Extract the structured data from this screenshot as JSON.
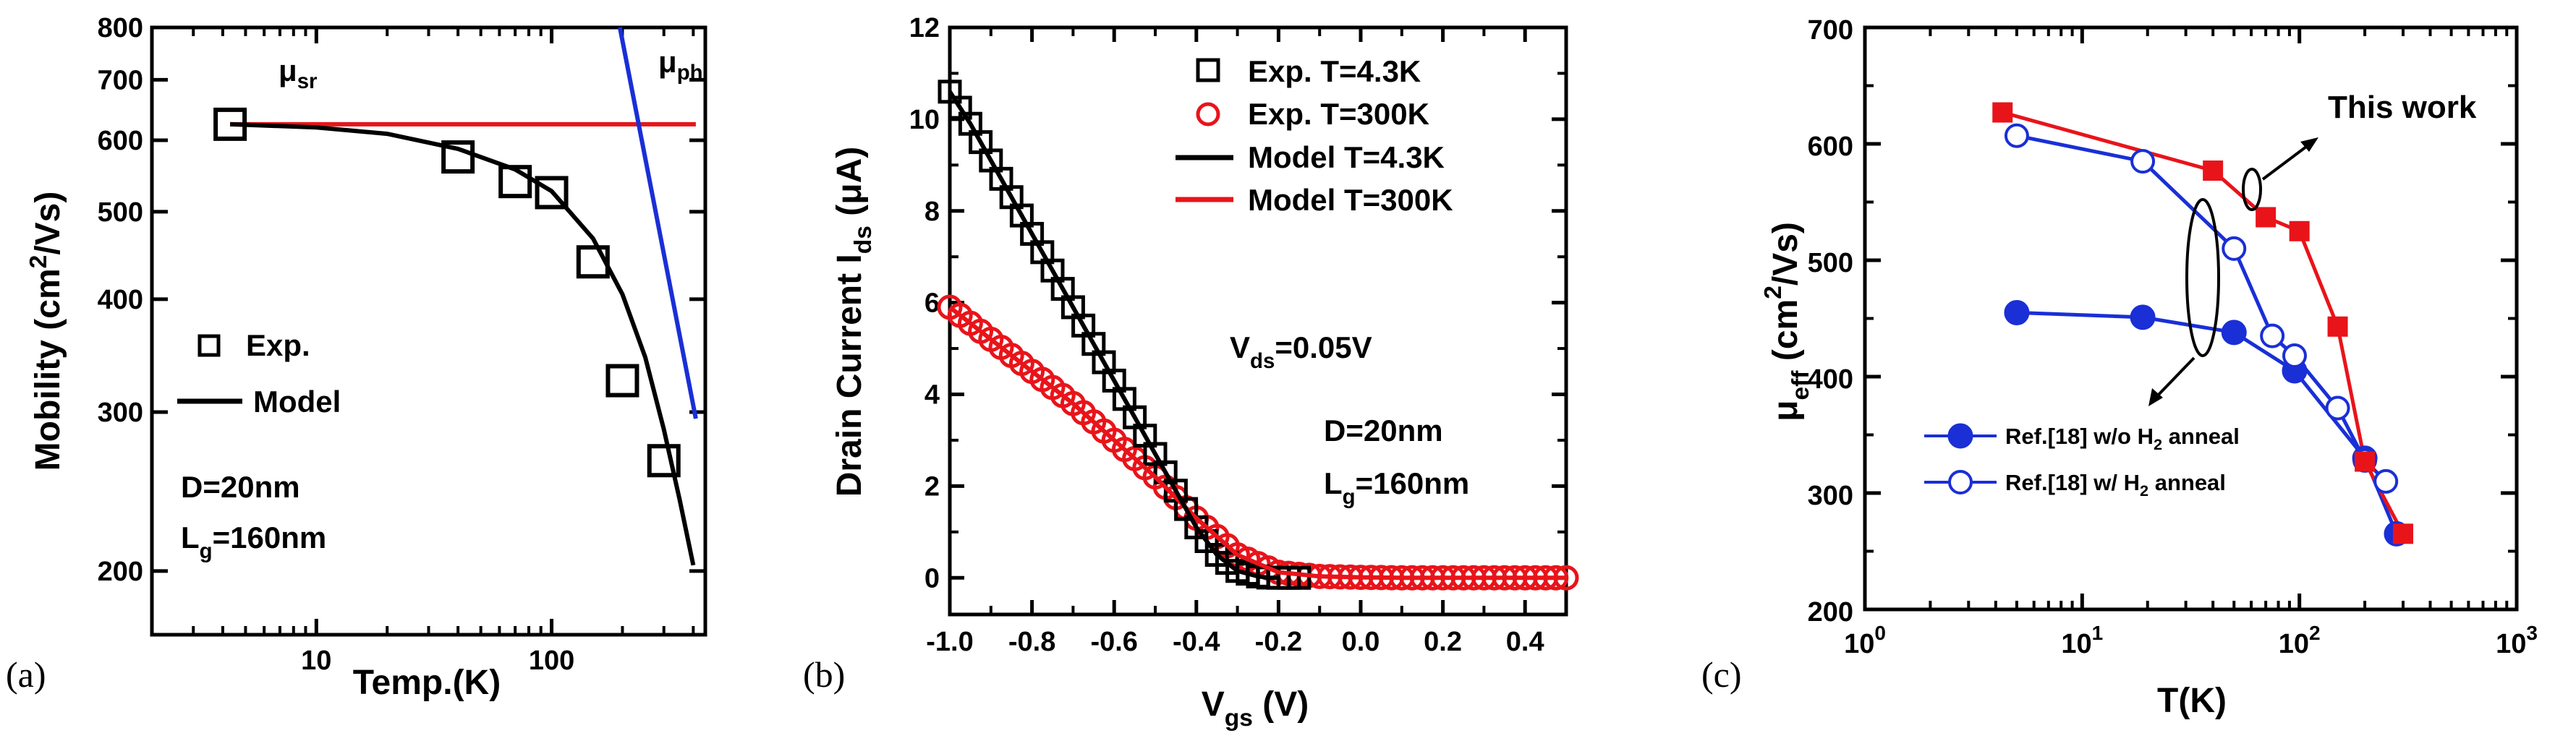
{
  "chart_data": [
    {
      "panel_label": "(a)",
      "type": "scatter",
      "xscale": "log",
      "yscale": "log",
      "xlim": [
        2,
        450
      ],
      "ylim": [
        170,
        800
      ],
      "xticks": [
        10,
        100
      ],
      "yticks": [
        200,
        300,
        400,
        500,
        600,
        700,
        800
      ],
      "xlabel": "Temp.(K)",
      "ylabel": {
        "main": "Mobility (cm",
        "sup": "2",
        "tail": "/Vs)"
      },
      "colors": {
        "data": "#000000",
        "model": "#000000",
        "sr": "#e8141a",
        "ph": "#1a2fd6"
      },
      "series": [
        {
          "name": "Exp.",
          "marker": "square-open",
          "x": [
            4.3,
            40,
            70,
            100,
            150,
            200,
            300
          ],
          "y": [
            625,
            575,
            540,
            525,
            440,
            325,
            265
          ]
        },
        {
          "name": "Model",
          "style": "line",
          "x": [
            4.3,
            10,
            20,
            40,
            70,
            100,
            150,
            200,
            250,
            300,
            350,
            400
          ],
          "y": [
            625,
            620,
            610,
            587,
            557,
            527,
            467,
            405,
            345,
            287,
            240,
            203
          ]
        },
        {
          "name": "μsr",
          "style": "line",
          "x": [
            4.3,
            410
          ],
          "y": [
            625,
            625
          ]
        },
        {
          "name": "μph",
          "style": "line",
          "x": [
            195,
            410
          ],
          "y": [
            800,
            295
          ]
        }
      ],
      "legend": {
        "exp": "Exp.",
        "model": "Model"
      },
      "annotations": {
        "mu_sr": {
          "main": "μ",
          "sub": "sr"
        },
        "mu_ph": {
          "main": "μ",
          "sub": "ph"
        },
        "diameter": "D=20nm",
        "gate_length": {
          "main": "L",
          "sub": "g",
          "tail": "=160nm"
        }
      }
    },
    {
      "panel_label": "(b)",
      "type": "scatter",
      "xlim": [
        -1.0,
        0.5
      ],
      "ylim": [
        -0.8,
        12
      ],
      "xticks": [
        -1.0,
        -0.8,
        -0.6,
        -0.4,
        -0.2,
        0.0,
        0.2,
        0.4
      ],
      "xtick_labels": [
        "-1.0",
        "-0.8",
        "-0.6",
        "-0.4",
        "-0.2",
        "0.0",
        "0.2",
        "0.4"
      ],
      "yticks": [
        0,
        2,
        4,
        6,
        8,
        10,
        12
      ],
      "xlabel": {
        "main": "V",
        "sub": "gs",
        "tail": " (V)"
      },
      "ylabel": {
        "main": "Drain Current I",
        "sub": "ds",
        "tail": " (μA)"
      },
      "colors": {
        "t43": "#000000",
        "t300": "#e8141a"
      },
      "model_4_3K": {
        "x": [
          -1.0,
          -0.95,
          -0.9,
          -0.85,
          -0.8,
          -0.75,
          -0.7,
          -0.65,
          -0.6,
          -0.55,
          -0.5,
          -0.45,
          -0.4,
          -0.35,
          -0.3,
          -0.25,
          -0.22,
          -0.2
        ],
        "y": [
          10.6,
          9.9,
          9.1,
          8.3,
          7.5,
          6.7,
          5.9,
          5.1,
          4.3,
          3.5,
          2.7,
          1.9,
          1.1,
          0.5,
          0.15,
          0.03,
          0.0,
          0.0
        ]
      },
      "model_300K": {
        "x": [
          -1.0,
          -0.9,
          -0.8,
          -0.7,
          -0.6,
          -0.5,
          -0.4,
          -0.3,
          -0.2,
          -0.1,
          0.0,
          0.1,
          0.2,
          0.3,
          0.4,
          0.5
        ],
        "y": [
          5.9,
          5.2,
          4.5,
          3.8,
          3.0,
          2.2,
          1.3,
          0.5,
          0.12,
          0.03,
          0.01,
          0.0,
          0.0,
          0.0,
          0.0,
          0.0
        ]
      },
      "legend": {
        "exp_4_3K": "Exp. T=4.3K",
        "exp_300K": "Exp. T=300K",
        "model_4_3K": "Model T=4.3K",
        "model_300K": "Model T=300K"
      },
      "annotations": {
        "vds": {
          "main": "V",
          "sub": "ds",
          "tail": "=0.05V"
        },
        "diameter": "D=20nm",
        "gate_length": {
          "main": "L",
          "sub": "g",
          "tail": "=160nm"
        }
      }
    },
    {
      "panel_label": "(c)",
      "type": "line",
      "xscale": "log",
      "xlim": [
        1,
        1000
      ],
      "ylim": [
        200,
        700
      ],
      "xticks": [
        1,
        10,
        100,
        1000
      ],
      "xtick_labels": [
        {
          "base": "10",
          "exp": "0"
        },
        {
          "base": "10",
          "exp": "1"
        },
        {
          "base": "10",
          "exp": "2"
        },
        {
          "base": "10",
          "exp": "3"
        }
      ],
      "yticks": [
        200,
        300,
        400,
        500,
        600,
        700
      ],
      "xlabel": "T(K)",
      "ylabel": {
        "main": "μ",
        "sub": "eff",
        "tail": " (cm",
        "sup": "2",
        "end": "/Vs)"
      },
      "colors": {
        "this_work": "#e8141a",
        "ref": "#1a2fd6"
      },
      "series": [
        {
          "name": "This work",
          "marker": "square-filled",
          "x": [
            4.3,
            40,
            70,
            100,
            150,
            200,
            300
          ],
          "y": [
            627,
            577,
            537,
            525,
            443,
            327,
            265
          ]
        },
        {
          "name": "Ref.[18] w/ H2 anneal",
          "marker": "circle-open",
          "x": [
            5,
            19,
            50,
            75,
            95,
            150,
            200,
            250
          ],
          "y": [
            607,
            585,
            510,
            435,
            418,
            373,
            328,
            310
          ]
        },
        {
          "name": "Ref.[18] w/o H2 anneal",
          "marker": "circle-filled",
          "x": [
            5,
            19,
            50,
            95,
            200,
            280
          ],
          "y": [
            455,
            451,
            438,
            405,
            330,
            265
          ]
        }
      ],
      "legend": {
        "wo": {
          "main": "Ref.[18] w/o H",
          "sub": "2",
          "tail": " anneal"
        },
        "w": {
          "main": "Ref.[18] w/  H",
          "sub": "2",
          "tail": " anneal"
        }
      },
      "annotations": {
        "this_work": "This work"
      }
    }
  ]
}
